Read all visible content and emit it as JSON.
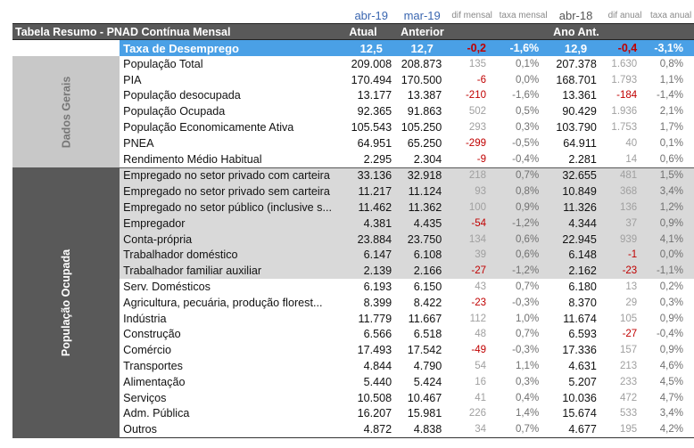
{
  "header_top": [
    "abr-19",
    "mar-19",
    "dif mensal",
    "taxa mensal",
    "abr-18",
    "dif anual",
    "taxa anual"
  ],
  "title": "Tabela Resumo - PNAD Contínua Mensal",
  "sub_headers": {
    "atual": "Atual",
    "anterior": "Anterior",
    "ano_ant": "Ano Ant."
  },
  "highlight": {
    "label": "Taxa de Desemprego",
    "atual": "12,5",
    "anterior": "12,7",
    "dif_mensal": "-0,2",
    "taxa_mensal": "-1,6%",
    "ano_ant": "12,9",
    "dif_anual": "-0,4",
    "taxa_anual": "-3,1%"
  },
  "groups": {
    "dados_gerais": "Dados Gerais",
    "populacao_ocupada": "População Ocupada"
  },
  "rows_gerais": [
    {
      "label": "População Total",
      "atual": "209.008",
      "anterior": "208.873",
      "dif_mensal": "135",
      "taxa_mensal": "0,1%",
      "ano_ant": "207.378",
      "dif_anual": "1.630",
      "taxa_anual": "0,8%"
    },
    {
      "label": "PIA",
      "atual": "170.494",
      "anterior": "170.500",
      "dif_mensal": "-6",
      "taxa_mensal": "0,0%",
      "ano_ant": "168.701",
      "dif_anual": "1.793",
      "taxa_anual": "1,1%"
    },
    {
      "label": "População desocupada",
      "atual": "13.177",
      "anterior": "13.387",
      "dif_mensal": "-210",
      "taxa_mensal": "-1,6%",
      "ano_ant": "13.361",
      "dif_anual": "-184",
      "taxa_anual": "-1,4%"
    },
    {
      "label": "População Ocupada",
      "atual": "92.365",
      "anterior": "91.863",
      "dif_mensal": "502",
      "taxa_mensal": "0,5%",
      "ano_ant": "90.429",
      "dif_anual": "1.936",
      "taxa_anual": "2,1%"
    },
    {
      "label": "População Economicamente Ativa",
      "atual": "105.543",
      "anterior": "105.250",
      "dif_mensal": "293",
      "taxa_mensal": "0,3%",
      "ano_ant": "103.790",
      "dif_anual": "1.753",
      "taxa_anual": "1,7%"
    },
    {
      "label": "PNEA",
      "atual": "64.951",
      "anterior": "65.250",
      "dif_mensal": "-299",
      "taxa_mensal": "-0,5%",
      "ano_ant": "64.911",
      "dif_anual": "40",
      "taxa_anual": "0,1%"
    },
    {
      "label": "Rendimento Médio Habitual",
      "atual": "2.295",
      "anterior": "2.304",
      "dif_mensal": "-9",
      "taxa_mensal": "-0,4%",
      "ano_ant": "2.281",
      "dif_anual": "14",
      "taxa_anual": "0,6%"
    }
  ],
  "rows_ocupada": [
    {
      "label": "Empregado no setor privado com carteira",
      "atual": "33.136",
      "anterior": "32.918",
      "dif_mensal": "218",
      "taxa_mensal": "0,7%",
      "ano_ant": "32.655",
      "dif_anual": "481",
      "taxa_anual": "1,5%",
      "shade": true
    },
    {
      "label": "Empregado no setor privado sem carteira",
      "atual": "11.217",
      "anterior": "11.124",
      "dif_mensal": "93",
      "taxa_mensal": "0,8%",
      "ano_ant": "10.849",
      "dif_anual": "368",
      "taxa_anual": "3,4%",
      "shade": true
    },
    {
      "label": "Empregado no setor público (inclusive s...",
      "atual": "11.462",
      "anterior": "11.362",
      "dif_mensal": "100",
      "taxa_mensal": "0,9%",
      "ano_ant": "11.326",
      "dif_anual": "136",
      "taxa_anual": "1,2%",
      "shade": true
    },
    {
      "label": "Empregador",
      "atual": "4.381",
      "anterior": "4.435",
      "dif_mensal": "-54",
      "taxa_mensal": "-1,2%",
      "ano_ant": "4.344",
      "dif_anual": "37",
      "taxa_anual": "0,9%",
      "shade": true
    },
    {
      "label": "Conta-própria",
      "atual": "23.884",
      "anterior": "23.750",
      "dif_mensal": "134",
      "taxa_mensal": "0,6%",
      "ano_ant": "22.945",
      "dif_anual": "939",
      "taxa_anual": "4,1%",
      "shade": true
    },
    {
      "label": "Trabalhador doméstico",
      "atual": "6.147",
      "anterior": "6.108",
      "dif_mensal": "39",
      "taxa_mensal": "0,6%",
      "ano_ant": "6.148",
      "dif_anual": "-1",
      "taxa_anual": "0,0%",
      "shade": true
    },
    {
      "label": "Trabalhador familiar auxiliar",
      "atual": "2.139",
      "anterior": "2.166",
      "dif_mensal": "-27",
      "taxa_mensal": "-1,2%",
      "ano_ant": "2.162",
      "dif_anual": "-23",
      "taxa_anual": "-1,1%",
      "shade": true
    },
    {
      "label": "Serv. Domésticos",
      "atual": "6.193",
      "anterior": "6.150",
      "dif_mensal": "43",
      "taxa_mensal": "0,7%",
      "ano_ant": "6.180",
      "dif_anual": "13",
      "taxa_anual": "0,2%",
      "shade": false
    },
    {
      "label": "Agricultura, pecuária, produção florest...",
      "atual": "8.399",
      "anterior": "8.422",
      "dif_mensal": "-23",
      "taxa_mensal": "-0,3%",
      "ano_ant": "8.370",
      "dif_anual": "29",
      "taxa_anual": "0,3%",
      "shade": false
    },
    {
      "label": "Indústria",
      "atual": "11.779",
      "anterior": "11.667",
      "dif_mensal": "112",
      "taxa_mensal": "1,0%",
      "ano_ant": "11.674",
      "dif_anual": "105",
      "taxa_anual": "0,9%",
      "shade": false
    },
    {
      "label": "Construção",
      "atual": "6.566",
      "anterior": "6.518",
      "dif_mensal": "48",
      "taxa_mensal": "0,7%",
      "ano_ant": "6.593",
      "dif_anual": "-27",
      "taxa_anual": "-0,4%",
      "shade": false
    },
    {
      "label": "Comércio",
      "atual": "17.493",
      "anterior": "17.542",
      "dif_mensal": "-49",
      "taxa_mensal": "-0,3%",
      "ano_ant": "17.336",
      "dif_anual": "157",
      "taxa_anual": "0,9%",
      "shade": false
    },
    {
      "label": "Transportes",
      "atual": "4.844",
      "anterior": "4.790",
      "dif_mensal": "54",
      "taxa_mensal": "1,1%",
      "ano_ant": "4.631",
      "dif_anual": "213",
      "taxa_anual": "4,6%",
      "shade": false
    },
    {
      "label": "Alimentação",
      "atual": "5.440",
      "anterior": "5.424",
      "dif_mensal": "16",
      "taxa_mensal": "0,3%",
      "ano_ant": "5.207",
      "dif_anual": "233",
      "taxa_anual": "4,5%",
      "shade": false
    },
    {
      "label": "Serviços",
      "atual": "10.508",
      "anterior": "10.467",
      "dif_mensal": "41",
      "taxa_mensal": "0,4%",
      "ano_ant": "10.036",
      "dif_anual": "472",
      "taxa_anual": "4,7%",
      "shade": false
    },
    {
      "label": "Adm. Pública",
      "atual": "16.207",
      "anterior": "15.981",
      "dif_mensal": "226",
      "taxa_mensal": "1,4%",
      "ano_ant": "15.674",
      "dif_anual": "533",
      "taxa_anual": "3,4%",
      "shade": false
    },
    {
      "label": "Outros",
      "atual": "4.872",
      "anterior": "4.838",
      "dif_mensal": "34",
      "taxa_mensal": "0,7%",
      "ano_ant": "4.677",
      "dif_anual": "195",
      "taxa_anual": "4,2%",
      "shade": false
    }
  ]
}
